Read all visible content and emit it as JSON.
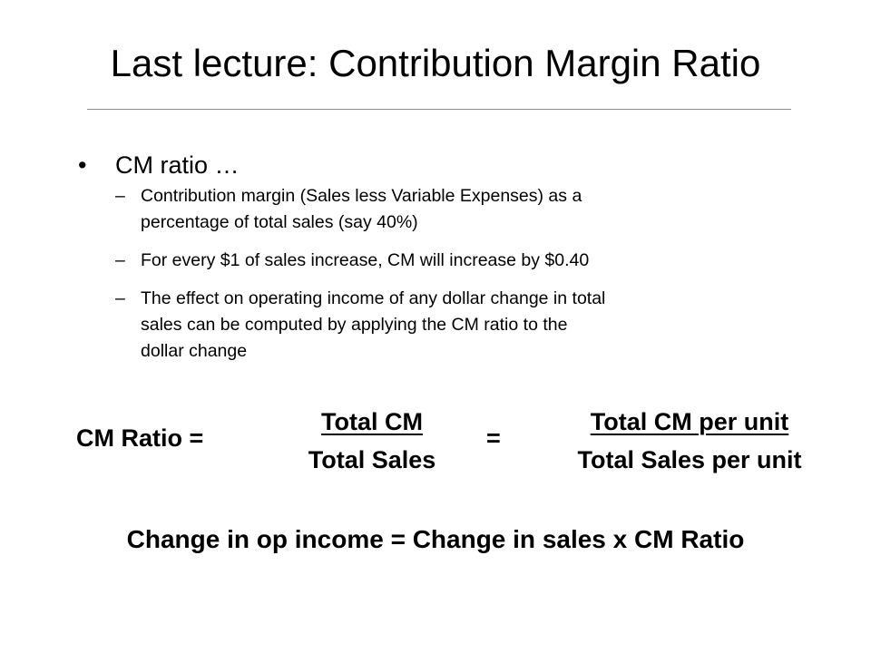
{
  "slide": {
    "title": "Last lecture: Contribution Margin Ratio",
    "bullet": {
      "symbol": "•",
      "text": "CM ratio …"
    },
    "sub_bullets": [
      {
        "dash": "–",
        "lines": [
          "Contribution margin (Sales less Variable Expenses) as a",
          "percentage of total sales (say 40%)"
        ]
      },
      {
        "dash": "–",
        "lines": [
          "For every $1 of sales increase, CM will increase by $0.40"
        ]
      },
      {
        "dash": "–",
        "lines": [
          "The effect on operating income of any dollar change in total",
          "sales can be computed by applying the CM ratio to the",
          "dollar change"
        ]
      }
    ],
    "formula": {
      "label": "CM Ratio =",
      "fraction1": {
        "numerator": "Total CM",
        "denominator": "Total Sales"
      },
      "equals": "=",
      "fraction2": {
        "numerator": "Total CM per unit",
        "denominator": "Total Sales per unit"
      }
    },
    "change_formula": "Change in op income = Change in sales x CM Ratio"
  }
}
